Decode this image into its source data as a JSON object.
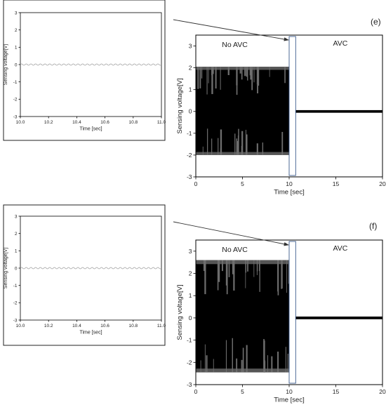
{
  "chart_data": [
    {
      "id": "e-inset",
      "type": "line",
      "xlabel": "Time [sec]",
      "ylabel": "Sensing voltage[V]",
      "xlim": [
        10.0,
        11.0
      ],
      "ylim": [
        -3,
        3
      ],
      "xticks": [
        "10.0",
        "10.2",
        "10.4",
        "10.6",
        "10.8",
        "11.0"
      ],
      "yticks": [
        "3",
        "2",
        "1",
        "0",
        "-1",
        "-2",
        "-3"
      ],
      "signal": {
        "offset": 0,
        "amplitude": 0.04,
        "cycles": 30
      },
      "grid": false,
      "line_color": "#9a9a9a"
    },
    {
      "id": "e-main",
      "panel_label": "(e)",
      "type": "area",
      "xlabel": "Time [sec]",
      "ylabel": "Sensing voltage[V]",
      "xlim": [
        0,
        20
      ],
      "ylim": [
        -3,
        3.5
      ],
      "xticks": [
        "0",
        "5",
        "10",
        "15",
        "20"
      ],
      "yticks": [
        "3",
        "2",
        "1",
        "0",
        "-1",
        "-2",
        "-3"
      ],
      "annotations": [
        "No AVC",
        "AVC"
      ],
      "series": [
        {
          "time_range": [
            0,
            10
          ],
          "envelope": [
            -2.0,
            2.05
          ]
        },
        {
          "time_range": [
            10,
            20
          ],
          "envelope": [
            -0.06,
            0.06
          ]
        }
      ],
      "highlight_window": [
        10.0,
        10.7
      ],
      "grid": false
    },
    {
      "id": "f-inset",
      "type": "line",
      "xlabel": "Time [sec]",
      "ylabel": "Sensing voltage[V]",
      "xlim": [
        10.0,
        11.0
      ],
      "ylim": [
        -3,
        3
      ],
      "xticks": [
        "10.0",
        "10.2",
        "10.4",
        "10.6",
        "10.8",
        "11.0"
      ],
      "yticks": [
        "3",
        "2",
        "1",
        "0",
        "-1",
        "-2",
        "-3"
      ],
      "signal": {
        "offset": 0,
        "amplitude": 0.04,
        "cycles": 30
      },
      "grid": false,
      "line_color": "#9a9a9a"
    },
    {
      "id": "f-main",
      "panel_label": "(f)",
      "type": "area",
      "xlabel": "Time [sec]",
      "ylabel": "Sensing voltage[V]",
      "xlim": [
        0,
        20
      ],
      "ylim": [
        -3,
        3.5
      ],
      "xticks": [
        "0",
        "5",
        "10",
        "15",
        "20"
      ],
      "yticks": [
        "3",
        "2",
        "1",
        "0",
        "-1",
        "-2",
        "-3"
      ],
      "annotations": [
        "No AVC",
        "AVC"
      ],
      "series": [
        {
          "time_range": [
            0,
            10
          ],
          "envelope": [
            -2.45,
            2.6
          ]
        },
        {
          "time_range": [
            10,
            20
          ],
          "envelope": [
            -0.06,
            0.06
          ]
        }
      ],
      "highlight_window": [
        10.0,
        10.7
      ],
      "grid": false
    }
  ]
}
